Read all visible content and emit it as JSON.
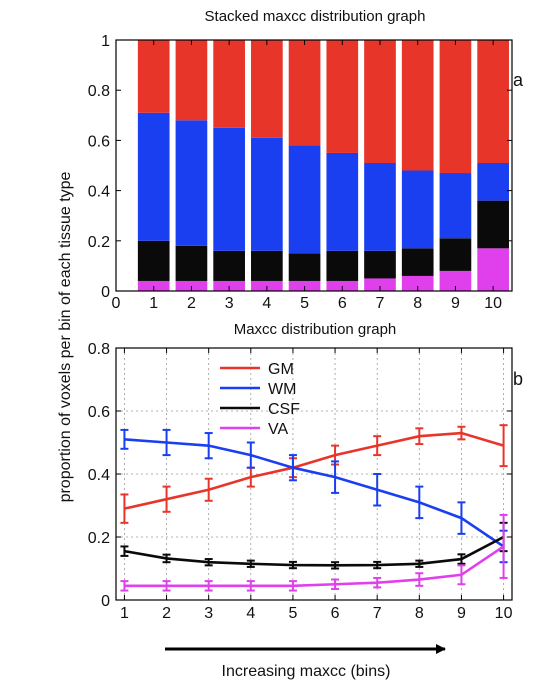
{
  "shared": {
    "ylabel": "proportion of voxels per bin of each tissue type",
    "xlabel": "Increasing maxcc (bins)"
  },
  "colors": {
    "GM": "#e8352a",
    "WM": "#1a3ff0",
    "CSF": "#0a0a0a",
    "VA": "#e040ec"
  },
  "chart_data": [
    {
      "type": "bar",
      "stacked": true,
      "title": "Stacked maxcc distribution graph",
      "panel_label": "a",
      "categories": [
        "1",
        "2",
        "3",
        "4",
        "5",
        "6",
        "7",
        "8",
        "9",
        "10"
      ],
      "xlim": [
        0,
        10.5
      ],
      "ylim": [
        0,
        1
      ],
      "x_ticks": [
        "0",
        "1",
        "2",
        "3",
        "4",
        "5",
        "6",
        "7",
        "8",
        "9",
        "10"
      ],
      "y_ticks": [
        "0",
        "0.2",
        "0.4",
        "0.6",
        "0.8",
        "1"
      ],
      "series": [
        {
          "name": "VA",
          "color_key": "VA",
          "values": [
            0.04,
            0.04,
            0.04,
            0.04,
            0.04,
            0.04,
            0.05,
            0.06,
            0.08,
            0.17
          ]
        },
        {
          "name": "CSF",
          "color_key": "CSF",
          "values": [
            0.16,
            0.14,
            0.12,
            0.12,
            0.11,
            0.12,
            0.11,
            0.11,
            0.13,
            0.19
          ]
        },
        {
          "name": "WM",
          "color_key": "WM",
          "values": [
            0.51,
            0.5,
            0.49,
            0.45,
            0.43,
            0.39,
            0.35,
            0.31,
            0.26,
            0.15
          ]
        },
        {
          "name": "GM",
          "color_key": "GM",
          "values": [
            0.29,
            0.32,
            0.35,
            0.39,
            0.42,
            0.45,
            0.49,
            0.52,
            0.53,
            0.49
          ]
        }
      ]
    },
    {
      "type": "line",
      "title": "Maxcc distribution graph",
      "panel_label": "b",
      "x": [
        1,
        2,
        3,
        4,
        5,
        6,
        7,
        8,
        9,
        10
      ],
      "xlim": [
        0.8,
        10.2
      ],
      "ylim": [
        0,
        0.8
      ],
      "x_ticks": [
        "1",
        "2",
        "3",
        "4",
        "5",
        "6",
        "7",
        "8",
        "9",
        "10"
      ],
      "y_ticks": [
        "0",
        "0.2",
        "0.4",
        "0.6",
        "0.8"
      ],
      "grid": true,
      "legend_position": "top-center",
      "series": [
        {
          "name": "GM",
          "color_key": "GM",
          "values": [
            0.29,
            0.32,
            0.35,
            0.39,
            0.42,
            0.46,
            0.49,
            0.52,
            0.53,
            0.49
          ],
          "errors": [
            0.045,
            0.04,
            0.035,
            0.03,
            0.03,
            0.03,
            0.03,
            0.025,
            0.02,
            0.065
          ]
        },
        {
          "name": "WM",
          "color_key": "WM",
          "values": [
            0.51,
            0.5,
            0.49,
            0.46,
            0.42,
            0.39,
            0.35,
            0.31,
            0.26,
            0.17
          ],
          "errors": [
            0.03,
            0.04,
            0.04,
            0.04,
            0.04,
            0.05,
            0.05,
            0.05,
            0.05,
            0.05
          ]
        },
        {
          "name": "CSF",
          "color_key": "CSF",
          "values": [
            0.155,
            0.132,
            0.12,
            0.115,
            0.111,
            0.11,
            0.111,
            0.115,
            0.13,
            0.2
          ],
          "errors": [
            0.015,
            0.012,
            0.01,
            0.01,
            0.01,
            0.01,
            0.01,
            0.01,
            0.015,
            0.045
          ]
        },
        {
          "name": "VA",
          "color_key": "VA",
          "values": [
            0.045,
            0.045,
            0.045,
            0.045,
            0.045,
            0.05,
            0.055,
            0.065,
            0.08,
            0.17
          ],
          "errors": [
            0.015,
            0.015,
            0.015,
            0.015,
            0.015,
            0.015,
            0.015,
            0.02,
            0.03,
            0.1
          ]
        }
      ]
    }
  ]
}
